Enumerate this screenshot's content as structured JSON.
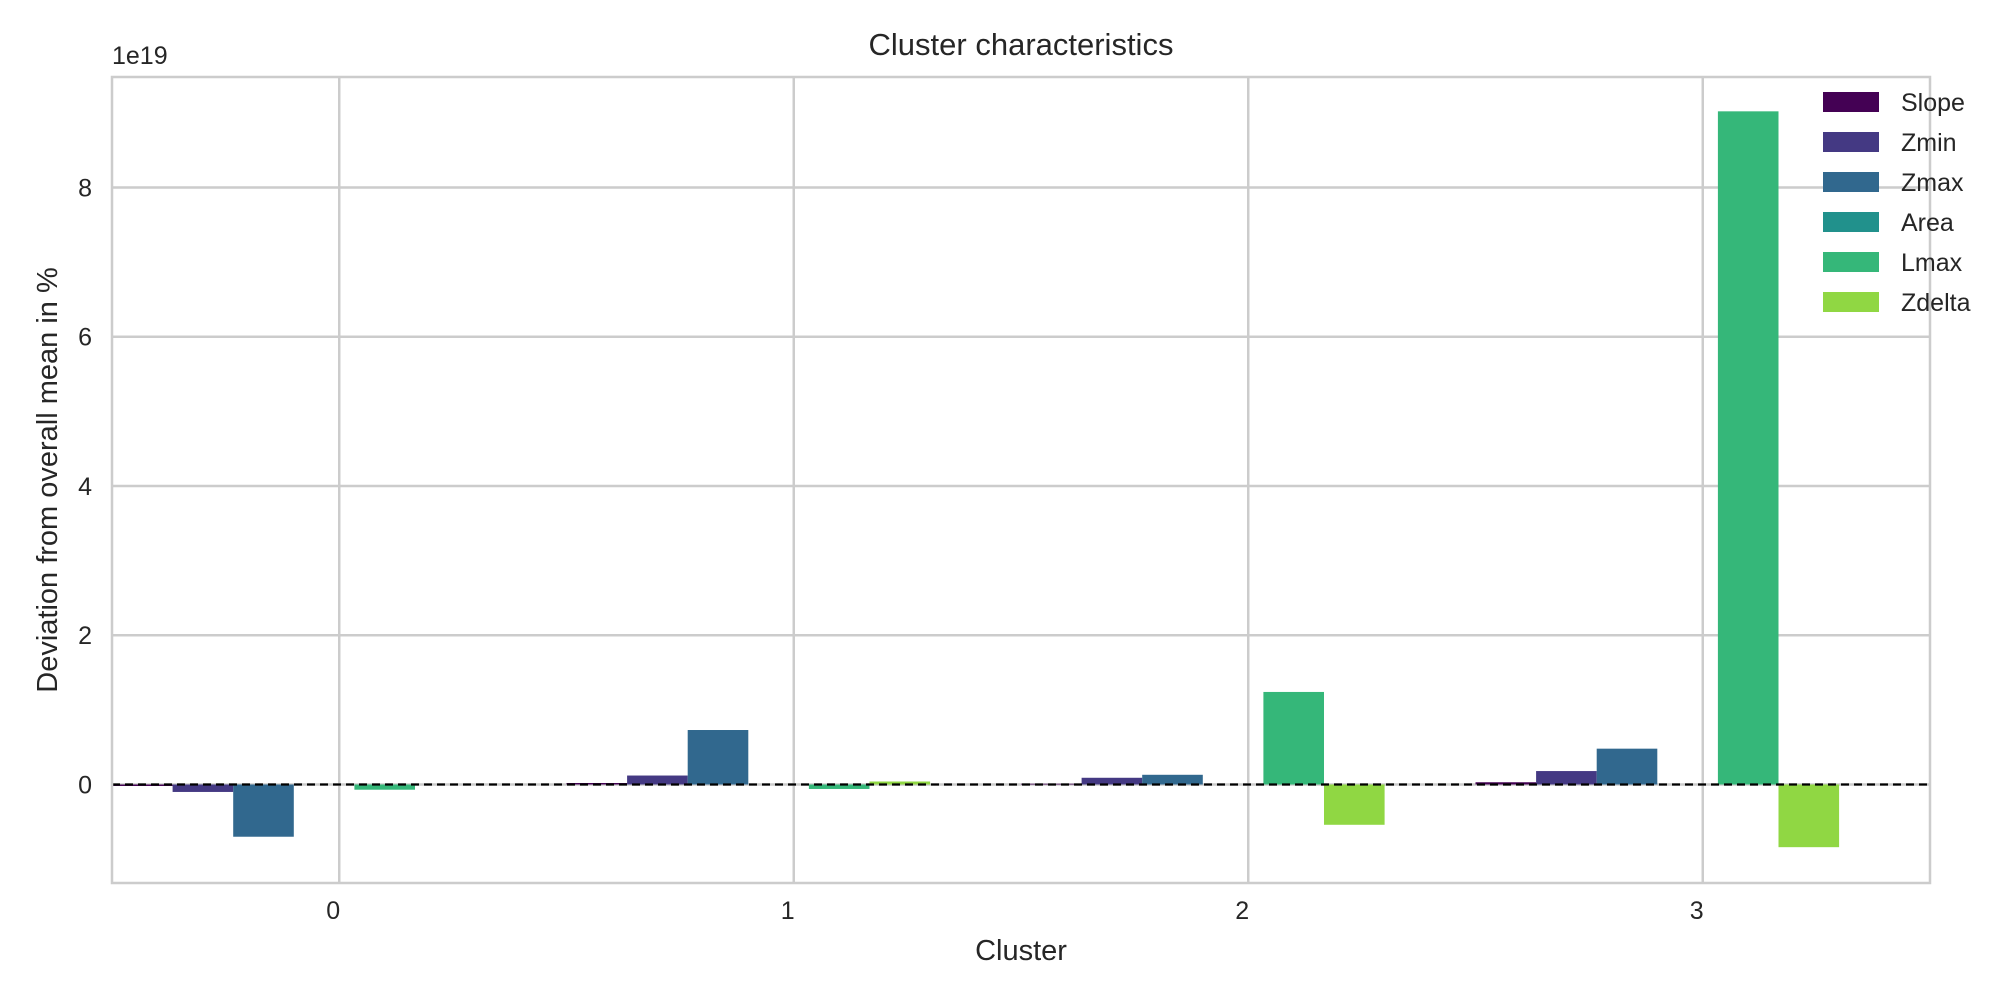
{
  "chart_data": {
    "type": "bar",
    "title": "Cluster characteristics",
    "xlabel": "Cluster",
    "ylabel": "Deviation from overall mean in %",
    "y_offset_text": "1e19",
    "y_multiplier": 1e+19,
    "ylim": [
      -1.32,
      9.48
    ],
    "yticks": [
      0,
      2,
      4,
      6,
      8
    ],
    "xlim": [
      -0.5,
      3.5
    ],
    "categories": [
      "0",
      "1",
      "2",
      "3"
    ],
    "grid": true,
    "reference_line": {
      "y": 0,
      "style": "dashed",
      "color": "#000000"
    },
    "legend_position": "top-right",
    "series": [
      {
        "name": "Slope",
        "color": "#440154",
        "values": [
          -0.02,
          0.02,
          0.01,
          0.03
        ]
      },
      {
        "name": "Zmin",
        "color": "#443983",
        "values": [
          -0.1,
          0.12,
          0.09,
          0.18
        ]
      },
      {
        "name": "Zmax",
        "color": "#31688e",
        "values": [
          -0.7,
          0.73,
          0.13,
          0.48
        ]
      },
      {
        "name": "Area",
        "color": "#21918c",
        "values": [
          0.0,
          0.0,
          0.0,
          0.0
        ]
      },
      {
        "name": "Lmax",
        "color": "#35b779",
        "values": [
          -0.07,
          -0.06,
          1.24,
          9.02
        ]
      },
      {
        "name": "Zdelta",
        "color": "#90d743",
        "values": [
          0.0,
          0.04,
          -0.54,
          -0.84
        ]
      }
    ]
  }
}
